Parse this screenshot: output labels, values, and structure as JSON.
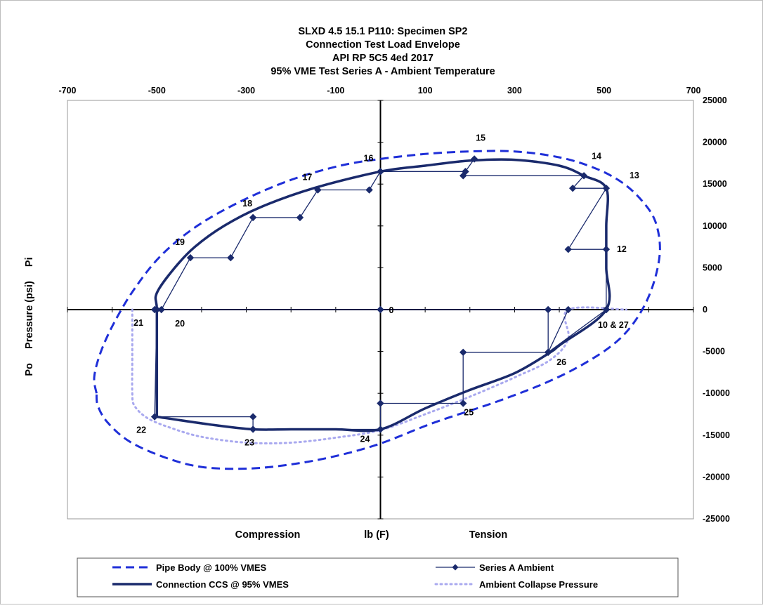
{
  "chart_data": {
    "type": "scatter",
    "title_lines": [
      "SLXD 4.5 15.1 P110: Specimen SP2",
      "Connection Test Load Envelope",
      "API RP 5C5 4ed 2017",
      "95% VME Test Series A - Ambient Temperature"
    ],
    "x_ticks": [
      "-700",
      "-500",
      "-300",
      "-100",
      "100",
      "300",
      "500",
      "700"
    ],
    "y_ticks": [
      "25000",
      "20000",
      "15000",
      "10000",
      "5000",
      "0",
      "-5000",
      "-10000",
      "-15000",
      "-20000",
      "-25000"
    ],
    "xlim": [
      -700,
      700
    ],
    "ylim": [
      -25000,
      25000
    ],
    "x_axis_labels": {
      "left": "Compression",
      "center": "lb (F)",
      "right": "Tension"
    },
    "y_axis_label": "Po     Pressure (psi)     Pi",
    "grid": false,
    "legend_position": "bottom",
    "series": [
      {
        "name": "Pipe Body @ 100% VMES",
        "color": "#1f2fd8",
        "style": "dashed",
        "points": [
          [
            -635,
            -10000
          ],
          [
            -640,
            -8000
          ],
          [
            -625,
            -5000
          ],
          [
            -595,
            -1500
          ],
          [
            -550,
            2500
          ],
          [
            -490,
            6500
          ],
          [
            -410,
            10000
          ],
          [
            -310,
            13000
          ],
          [
            -200,
            15500
          ],
          [
            -90,
            17200
          ],
          [
            0,
            18000
          ],
          [
            100,
            18600
          ],
          [
            200,
            18900
          ],
          [
            300,
            18900
          ],
          [
            400,
            18200
          ],
          [
            480,
            16900
          ],
          [
            540,
            15200
          ],
          [
            585,
            13000
          ],
          [
            615,
            10500
          ],
          [
            625,
            7000
          ],
          [
            610,
            3000
          ],
          [
            580,
            -500
          ],
          [
            535,
            -3500
          ],
          [
            470,
            -6000
          ],
          [
            380,
            -8500
          ],
          [
            260,
            -11000
          ],
          [
            120,
            -13500
          ],
          [
            0,
            -16000
          ],
          [
            -100,
            -17500
          ],
          [
            -200,
            -18500
          ],
          [
            -300,
            -19000
          ],
          [
            -400,
            -18800
          ],
          [
            -480,
            -17700
          ],
          [
            -560,
            -15800
          ],
          [
            -610,
            -13500
          ],
          [
            -632,
            -11500
          ],
          [
            -635,
            -10000
          ]
        ]
      },
      {
        "name": "Connection CCS @ 95% VMES",
        "color": "#1a2a6c",
        "style": "solid",
        "points": [
          [
            -500,
            -12800
          ],
          [
            -500,
            -10000
          ],
          [
            -500,
            -5000
          ],
          [
            -500,
            0
          ],
          [
            -500,
            2000
          ],
          [
            -460,
            5000
          ],
          [
            -415,
            7500
          ],
          [
            -350,
            10000
          ],
          [
            -270,
            12200
          ],
          [
            -150,
            14500
          ],
          [
            0,
            16500
          ],
          [
            100,
            17200
          ],
          [
            200,
            17800
          ],
          [
            300,
            17900
          ],
          [
            400,
            17200
          ],
          [
            455,
            16000
          ],
          [
            505,
            14500
          ],
          [
            505,
            10000
          ],
          [
            505,
            5000
          ],
          [
            505,
            0
          ],
          [
            402,
            -4200
          ],
          [
            380,
            -5100
          ],
          [
            300,
            -7600
          ],
          [
            200,
            -9600
          ],
          [
            100,
            -11800
          ],
          [
            0,
            -14300
          ],
          [
            -100,
            -14300
          ],
          [
            -200,
            -14300
          ],
          [
            -285,
            -14300
          ],
          [
            -385,
            -13700
          ],
          [
            -500,
            -12800
          ]
        ]
      },
      {
        "name": "Series A Ambient",
        "color": "#1a2a6c",
        "style": "line-markers",
        "points": [
          [
            505,
            0
          ],
          [
            505,
            7200
          ],
          [
            420,
            7200
          ],
          [
            505,
            14500
          ],
          [
            430,
            14500
          ],
          [
            455,
            16000
          ],
          [
            185,
            16000
          ],
          [
            190,
            16500
          ],
          [
            210,
            18000
          ],
          [
            190,
            16500
          ],
          [
            0,
            16500
          ],
          [
            0,
            16500
          ],
          [
            -25,
            14300
          ],
          [
            -140,
            14300
          ],
          [
            -180,
            11000
          ],
          [
            -285,
            11000
          ],
          [
            -335,
            6200
          ],
          [
            -425,
            6200
          ],
          [
            -490,
            0
          ],
          [
            -505,
            0
          ],
          [
            0,
            0
          ],
          [
            375,
            0
          ],
          [
            375,
            -5100
          ],
          [
            185,
            -5100
          ],
          [
            185,
            -11200
          ],
          [
            0,
            -11200
          ],
          [
            0,
            -14300
          ],
          [
            -285,
            -14300
          ],
          [
            -285,
            -12800
          ],
          [
            -505,
            -12800
          ],
          [
            -500,
            0
          ],
          [
            420,
            0
          ],
          [
            375,
            -5100
          ],
          [
            505,
            0
          ]
        ],
        "point_labels": [
          {
            "label": "0",
            "x": 0,
            "y": 0,
            "dx": 12,
            "dy": 5,
            "anchor": "start"
          },
          {
            "label": "10 & 27",
            "x": 505,
            "y": 0,
            "dx": 10,
            "dy": 26,
            "anchor": "middle"
          },
          {
            "label": "12",
            "x": 505,
            "y": 7200,
            "dx": 22,
            "dy": 4,
            "anchor": "middle"
          },
          {
            "label": "13",
            "x": 505,
            "y": 14500,
            "dx": 40,
            "dy": -14,
            "anchor": "middle"
          },
          {
            "label": "14",
            "x": 455,
            "y": 16000,
            "dx": 18,
            "dy": -24,
            "anchor": "middle"
          },
          {
            "label": "15",
            "x": 210,
            "y": 18000,
            "dx": 9,
            "dy": -26,
            "anchor": "middle"
          },
          {
            "label": "16",
            "x": 0,
            "y": 16500,
            "dx": -17,
            "dy": -15,
            "anchor": "middle"
          },
          {
            "label": "17",
            "x": -140,
            "y": 14300,
            "dx": -15,
            "dy": -14,
            "anchor": "middle"
          },
          {
            "label": "18",
            "x": -285,
            "y": 11000,
            "dx": -8,
            "dy": -16,
            "anchor": "middle"
          },
          {
            "label": "19",
            "x": -425,
            "y": 6200,
            "dx": -15,
            "dy": -18,
            "anchor": "middle"
          },
          {
            "label": "20",
            "x": -505,
            "y": 0,
            "dx": 36,
            "dy": 24,
            "anchor": "middle"
          },
          {
            "label": "21",
            "x": -505,
            "y": 0,
            "dx": -23,
            "dy": 23,
            "anchor": "middle"
          },
          {
            "label": "22",
            "x": -505,
            "y": -12800,
            "dx": -19,
            "dy": 23,
            "anchor": "middle"
          },
          {
            "label": "23",
            "x": -285,
            "y": -14300,
            "dx": -5,
            "dy": 23,
            "anchor": "middle"
          },
          {
            "label": "24",
            "x": 0,
            "y": -14300,
            "dx": -22,
            "dy": 18,
            "anchor": "middle"
          },
          {
            "label": "25",
            "x": 185,
            "y": -11200,
            "dx": 8,
            "dy": 17,
            "anchor": "middle"
          },
          {
            "label": "26",
            "x": 375,
            "y": -5100,
            "dx": 19,
            "dy": 18,
            "anchor": "middle"
          }
        ]
      },
      {
        "name": "Ambient Collapse Pressure",
        "color": "#a9a9ef",
        "style": "dotted",
        "points": [
          [
            -555,
            0
          ],
          [
            -555,
            -3000
          ],
          [
            -555,
            -6000
          ],
          [
            -555,
            -10000
          ],
          [
            -550,
            -11500
          ],
          [
            -520,
            -13000
          ],
          [
            -465,
            -14200
          ],
          [
            -400,
            -15200
          ],
          [
            -300,
            -15900
          ],
          [
            -200,
            -15900
          ],
          [
            -100,
            -15300
          ],
          [
            0,
            -14400
          ],
          [
            100,
            -12500
          ],
          [
            200,
            -10400
          ],
          [
            300,
            -8100
          ],
          [
            380,
            -6000
          ],
          [
            420,
            -3500
          ],
          [
            420,
            0
          ],
          [
            550,
            0
          ]
        ]
      }
    ],
    "legend": [
      {
        "label": "Pipe Body @ 100% VMES",
        "series": 0
      },
      {
        "label": "Series A Ambient",
        "series": 2
      },
      {
        "label": "Connection CCS @ 95% VMES",
        "series": 1
      },
      {
        "label": "Ambient Collapse Pressure",
        "series": 3
      }
    ]
  }
}
